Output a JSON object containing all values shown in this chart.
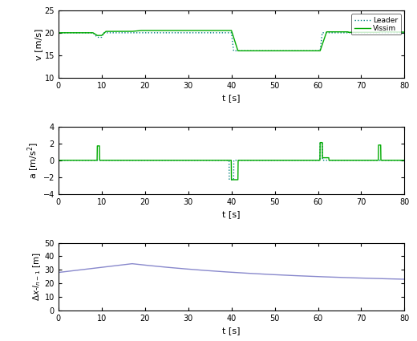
{
  "xlim": [
    0,
    80
  ],
  "xticks": [
    0,
    10,
    20,
    30,
    40,
    50,
    60,
    70,
    80
  ],
  "xlabel": "t [s]",
  "subplot1": {
    "ylim": [
      10,
      25
    ],
    "yticks": [
      10,
      15,
      20,
      25
    ],
    "ylabel": "v [m/s]",
    "leader_color": "#008080",
    "vissim_color": "#00aa00",
    "legend_labels": [
      "Leader",
      "Vissim"
    ]
  },
  "subplot2": {
    "ylim": [
      -4,
      4
    ],
    "yticks": [
      -4,
      -2,
      0,
      2,
      4
    ],
    "ylabel": "a [m/s^2]",
    "leader_color": "#008080",
    "vissim_color": "#00aa00"
  },
  "subplot3": {
    "ylim": [
      0,
      50
    ],
    "yticks": [
      0,
      10,
      20,
      30,
      40,
      50
    ],
    "ylabel": "Dx-l_n-1 [m]",
    "line_color": "#8888cc"
  },
  "background_color": "#ffffff",
  "figure_background": "#ffffff"
}
